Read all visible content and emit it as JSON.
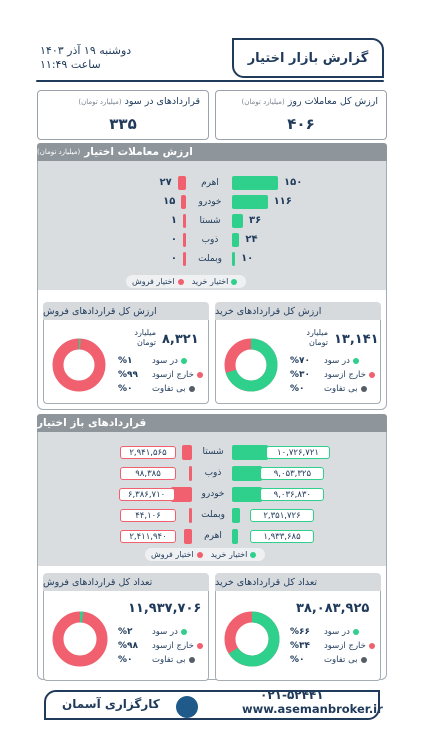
{
  "header": {
    "title": "گزارش بازار اختیار",
    "date": "دوشنبه ۱۹ آذر ۱۴۰۳",
    "time": "ساعت ۱۱:۴۹"
  },
  "summary": {
    "total_value": {
      "label": "ارزش کل معاملات روز",
      "unit": "(میلیارد تومان)",
      "value": "۴۰۶"
    },
    "in_money": {
      "label": "قراردادهای در سود",
      "unit": "(میلیارد تومان)",
      "value": "۳۳۵"
    }
  },
  "section1": {
    "title": "ارزش معاملات اختیار",
    "unit": "(میلیارد تومان)",
    "rows": [
      {
        "name": "اهرم",
        "buy": "۱۵۰",
        "sell": "۲۷",
        "buy_v": 150,
        "sell_v": 27
      },
      {
        "name": "خودرو",
        "buy": "۱۱۶",
        "sell": "۱۵",
        "buy_v": 116,
        "sell_v": 15
      },
      {
        "name": "شستا",
        "buy": "۳۶",
        "sell": "۱",
        "buy_v": 36,
        "sell_v": 1
      },
      {
        "name": "ذوب",
        "buy": "۲۴",
        "sell": "۰",
        "buy_v": 24,
        "sell_v": 0
      },
      {
        "name": "وبملت",
        "buy": "۱۰",
        "sell": "۰",
        "buy_v": 10,
        "sell_v": 0
      }
    ],
    "legend_buy": "اختیار خرید",
    "legend_sell": "اختیار فروش",
    "buy_card": {
      "title": "ارزش کل قراردادهای خرید",
      "value": "۱۳,۱۴۱",
      "unit": "میلیارد تومان",
      "stats": [
        {
          "label": "در سود",
          "pct": "%۷۰",
          "color": "#2fcf8c"
        },
        {
          "label": "خارج ازسود",
          "pct": "%۳۰",
          "color": "#f0606f"
        },
        {
          "label": "بی تفاوت",
          "pct": "%۰",
          "color": "#555e66"
        }
      ],
      "ring_fraction": 0.7
    },
    "sell_card": {
      "title": "ارزش کل قراردادهای فروش",
      "value": "۸,۳۲۱",
      "unit": "میلیارد تومان",
      "stats": [
        {
          "label": "در سود",
          "pct": "%۱",
          "color": "#2fcf8c"
        },
        {
          "label": "خارج ازسود",
          "pct": "%۹۹",
          "color": "#f0606f"
        },
        {
          "label": "بی تفاوت",
          "pct": "%۰",
          "color": "#555e66"
        }
      ],
      "ring_fraction": 0.01
    }
  },
  "section2": {
    "title": "قراردادهای باز اختیار",
    "rows": [
      {
        "name": "شستا",
        "buy": "۱۰,۷۲۶,۷۲۱",
        "sell": "۲,۹۴۱,۵۶۵",
        "buy_v": 10726721,
        "sell_v": 2941565
      },
      {
        "name": "ذوب",
        "buy": "۹,۰۵۳,۳۲۵",
        "sell": "۹۸,۳۸۵",
        "buy_v": 9053325,
        "sell_v": 98385
      },
      {
        "name": "خودرو",
        "buy": "۹,۰۳۶,۸۳۰",
        "sell": "۶,۳۸۶,۷۱۰",
        "buy_v": 9036830,
        "sell_v": 6386710
      },
      {
        "name": "وبملت",
        "buy": "۲,۳۵۱,۷۲۶",
        "sell": "۴۴,۱۰۶",
        "buy_v": 2351726,
        "sell_v": 44106
      },
      {
        "name": "اهرم",
        "buy": "۱,۹۳۳,۶۸۵",
        "sell": "۲,۴۱۱,۹۴۰",
        "buy_v": 1933685,
        "sell_v": 2411940
      }
    ],
    "legend_buy": "اختیار خرید",
    "legend_sell": "اختیار فروش",
    "buy_card": {
      "title": "تعداد کل قراردادهای خرید",
      "value": "۳۸,۰۸۳,۹۲۵",
      "stats": [
        {
          "label": "در سود",
          "pct": "%۶۶",
          "color": "#2fcf8c"
        },
        {
          "label": "خارج ازسود",
          "pct": "%۳۴",
          "color": "#f0606f"
        },
        {
          "label": "بی تفاوت",
          "pct": "%۰",
          "color": "#555e66"
        }
      ],
      "ring_fraction": 0.66
    },
    "sell_card": {
      "title": "تعداد کل قراردادهای فروش",
      "value": "۱۱,۹۳۷,۷۰۶",
      "stats": [
        {
          "label": "در سود",
          "pct": "%۲",
          "color": "#2fcf8c"
        },
        {
          "label": "خارج ازسود",
          "pct": "%۹۸",
          "color": "#f0606f"
        },
        {
          "label": "بی تفاوت",
          "pct": "%۰",
          "color": "#555e66"
        }
      ],
      "ring_fraction": 0.02
    }
  },
  "footer": {
    "phone": "۰۲۱-۵۲۴۴۱",
    "website": "www.asemanbroker.ir",
    "brand": "کارگزاری آسمان"
  },
  "colors": {
    "green": "#2fcf8c",
    "red": "#f0606f",
    "navy": "#1f3a5a",
    "gray": "#8e959b"
  }
}
